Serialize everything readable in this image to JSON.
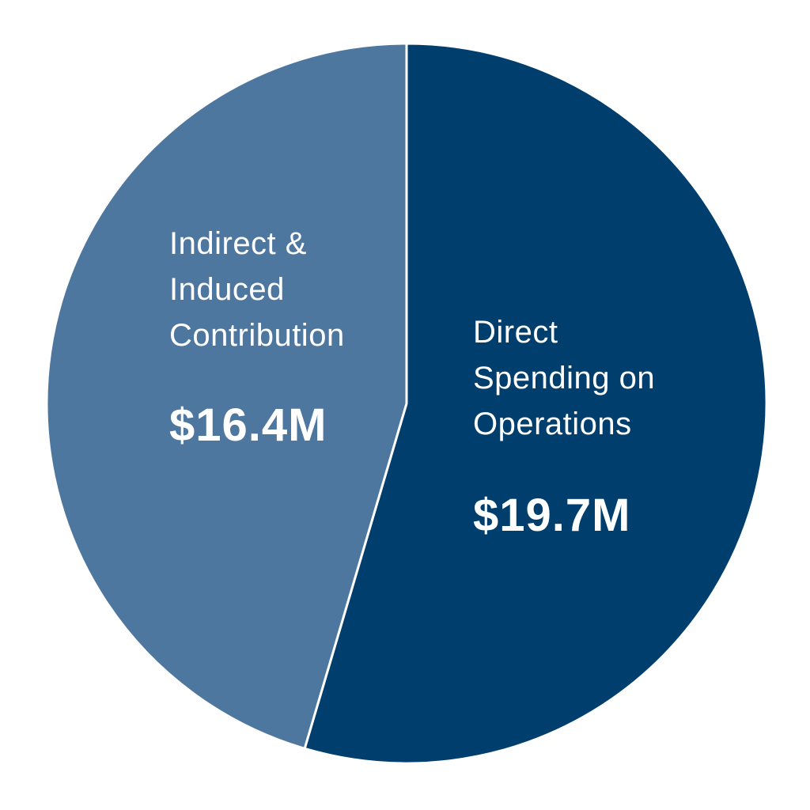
{
  "chart_data": {
    "type": "pie",
    "categories": [
      "Direct Spending on Operations",
      "Indirect & Induced Contribution"
    ],
    "values": [
      19.7,
      16.4
    ],
    "value_labels": [
      "$19.7M",
      "$16.4M"
    ],
    "colors": [
      "#003e6e",
      "#4e77a0"
    ]
  }
}
